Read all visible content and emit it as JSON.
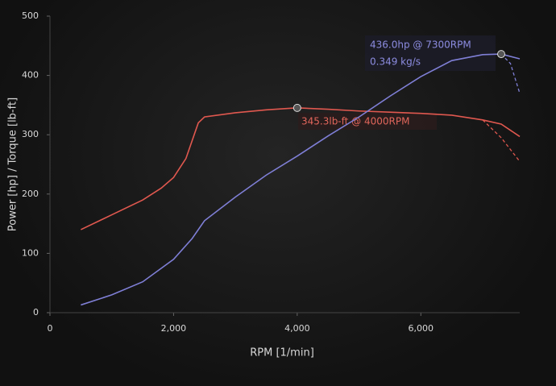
{
  "chart_data": {
    "type": "line",
    "xlabel": "RPM [1/min]",
    "ylabel": "Power [hp] / Torque [lb-ft]",
    "xlim": [
      0,
      7600
    ],
    "ylim": [
      0,
      500
    ],
    "xticks": [
      0,
      {
        "value": 2000,
        "label": "2,000"
      },
      {
        "value": 4000,
        "label": "4,000"
      },
      {
        "value": 6000,
        "label": "6,000"
      }
    ],
    "yticks": [
      0,
      100,
      200,
      300,
      400,
      500
    ],
    "series": [
      {
        "color": "#e0584f",
        "dashed": false,
        "x": [
          500,
          1000,
          1500,
          1800,
          2000,
          2200,
          2400,
          2500,
          3000,
          3500,
          4000,
          4500,
          5000,
          5500,
          6000,
          6500,
          7000,
          7300,
          7600
        ],
        "values": [
          140,
          165,
          190,
          210,
          228,
          260,
          320,
          330,
          337,
          342,
          345.3,
          343,
          340,
          338,
          336,
          333,
          325,
          318,
          297
        ]
      },
      {
        "color": "#e0584f",
        "dashed": true,
        "x": [
          7000,
          7300,
          7600
        ],
        "values": [
          325,
          295,
          255
        ]
      },
      {
        "color": "#7f7fd6",
        "dashed": false,
        "x": [
          500,
          1000,
          1500,
          2000,
          2300,
          2500,
          3000,
          3500,
          4000,
          4500,
          5000,
          5500,
          6000,
          6500,
          7000,
          7300,
          7600
        ],
        "values": [
          13,
          30,
          52,
          90,
          125,
          155,
          195,
          232,
          264,
          298,
          330,
          365,
          398,
          425,
          435,
          436,
          428
        ]
      },
      {
        "color": "#7f7fd6",
        "dashed": true,
        "x": [
          7300,
          7450,
          7600
        ],
        "values": [
          436,
          420,
          370
        ]
      }
    ],
    "markers": [
      {
        "x": 7300,
        "y": 436
      },
      {
        "x": 4000,
        "y": 345.3
      }
    ],
    "annotations": [
      "436.0hp @ 7300RPM",
      "0.349 kg/s",
      "345.3lb-ft @ 4000RPM"
    ]
  }
}
